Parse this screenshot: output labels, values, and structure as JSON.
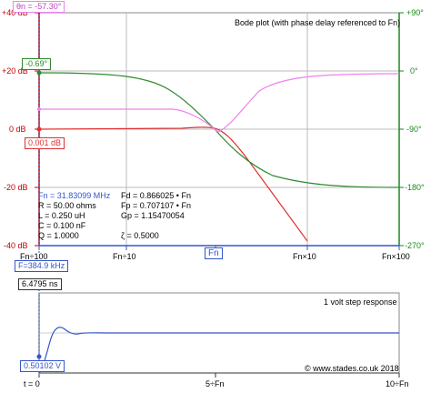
{
  "bode": {
    "title": "Bode plot (with phase delay referenced to Fn)",
    "y_left_ticks": [
      "+40 dB",
      "+20 dB",
      "0 dB",
      "-20 dB",
      "-40 dB"
    ],
    "y_right_ticks": [
      "+90°",
      "0°",
      "-90°",
      "-180°",
      "-270°"
    ],
    "x_ticks": [
      "Fn÷100",
      "Fn÷10",
      "Fn",
      "Fn×10",
      "Fn×100"
    ],
    "phase_cursor": "θn = -57.30°",
    "marker_green": "-0.69°",
    "marker_red": "0.001 dB",
    "freq_readout": "F=384.9 kHz",
    "params_left": [
      "Fn  =  31.83099 MHz",
      "R    =  50.00 ohms",
      "L    =  0.250 uH",
      "C    =  0.100 nF",
      "Q    =  1.0000"
    ],
    "params_right": [
      "Fd   =  0.866025 • Fn",
      "Fp   =  0.707107 • Fn",
      "Gp   =  1.15470054",
      "",
      "ζ     =  0.5000"
    ],
    "colors": {
      "gain": "#e03030",
      "phase": "#2e8b2e",
      "delay": "#ee82ee",
      "axis_left": "#c00000",
      "axis_right": "#1a8a1a",
      "axis_bottom": "#3355cc"
    }
  },
  "step": {
    "title": "1 volt step response",
    "time_readout": "6.4795 ns",
    "value_readout": "0.50102 V",
    "x_ticks": [
      "t = 0",
      "5÷Fn",
      "10÷Fn"
    ],
    "copyright": "© www.stades.co.uk 2018"
  }
}
